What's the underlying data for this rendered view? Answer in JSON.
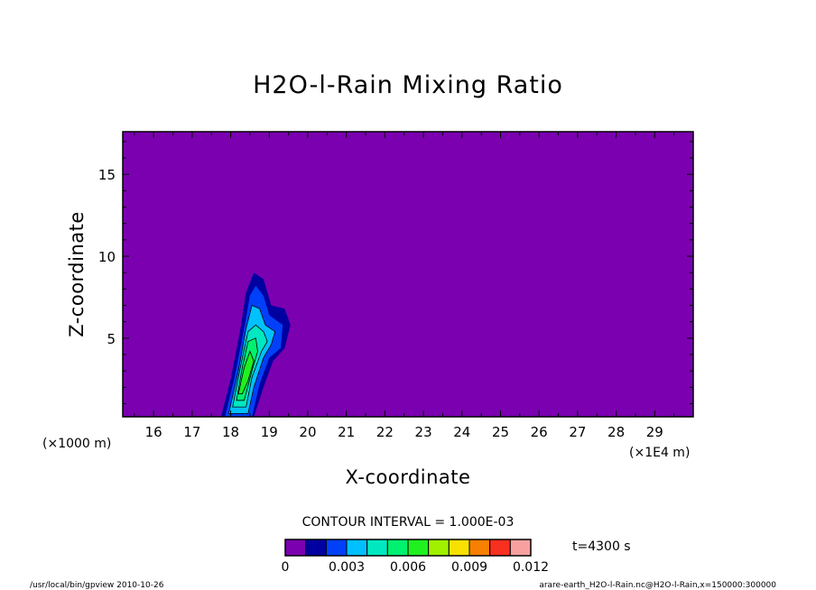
{
  "chart_data": {
    "type": "filled-contour",
    "title": "H2O-l-Rain Mixing Ratio",
    "xlabel": "X-coordinate",
    "ylabel": "Z-coordinate",
    "x_unit_left": "(×1000 m)",
    "x_unit_right": "(×1E4 m)",
    "xlim": [
      15.2,
      30.0
    ],
    "ylim": [
      0.2,
      17.6
    ],
    "x_ticks": [
      16,
      17,
      18,
      19,
      20,
      21,
      22,
      23,
      24,
      25,
      26,
      27,
      28,
      29
    ],
    "x_tick_labels": [
      "16",
      "17",
      "18",
      "19",
      "20",
      "21",
      "22",
      "23",
      "24",
      "25",
      "26",
      "27",
      "28",
      "29"
    ],
    "y_ticks": [
      5,
      10,
      15
    ],
    "y_tick_labels": [
      "5",
      "10",
      "15"
    ],
    "contour_interval_text": "CONTOUR INTERVAL = 1.000E-03",
    "time_label": "t=4300 s",
    "colorbar": {
      "levels": [
        0,
        0.001,
        0.002,
        0.003,
        0.004,
        0.005,
        0.006,
        0.007,
        0.008,
        0.009,
        0.01,
        0.011,
        0.012
      ],
      "colors": [
        "#7b00b0",
        "#0000a0",
        "#0040f8",
        "#00c0ff",
        "#00e8c0",
        "#00f070",
        "#20f020",
        "#a0f000",
        "#f8e000",
        "#f88000",
        "#f83020",
        "#f8a0a0"
      ],
      "tick_labels": [
        "0",
        "0.003",
        "0.006",
        "0.009",
        "0.012"
      ]
    },
    "background_value": 0,
    "plume": {
      "description_values": "rain-water mixing ratio filled contours near x≈18–19.5 (×1000 m), z≈0–9",
      "contours": [
        {
          "level": 0.001,
          "points": [
            [
              17.75,
              0.2
            ],
            [
              18.0,
              2.5
            ],
            [
              18.25,
              5.5
            ],
            [
              18.4,
              7.8
            ],
            [
              18.6,
              9.0
            ],
            [
              18.85,
              8.6
            ],
            [
              19.05,
              7.0
            ],
            [
              19.4,
              6.8
            ],
            [
              19.55,
              5.8
            ],
            [
              19.4,
              4.4
            ],
            [
              19.1,
              3.6
            ],
            [
              18.85,
              2.0
            ],
            [
              18.6,
              0.2
            ]
          ]
        },
        {
          "level": 0.002,
          "points": [
            [
              17.85,
              0.2
            ],
            [
              18.1,
              2.6
            ],
            [
              18.35,
              5.6
            ],
            [
              18.5,
              7.6
            ],
            [
              18.65,
              8.2
            ],
            [
              18.85,
              7.6
            ],
            [
              19.0,
              6.4
            ],
            [
              19.35,
              5.8
            ],
            [
              19.3,
              4.4
            ],
            [
              19.0,
              3.8
            ],
            [
              18.75,
              2.2
            ],
            [
              18.55,
              0.2
            ]
          ]
        },
        {
          "level": 0.003,
          "points": [
            [
              17.95,
              0.4
            ],
            [
              18.2,
              3.0
            ],
            [
              18.4,
              5.6
            ],
            [
              18.55,
              7.0
            ],
            [
              18.75,
              6.8
            ],
            [
              18.9,
              5.8
            ],
            [
              19.15,
              5.4
            ],
            [
              19.05,
              4.6
            ],
            [
              18.85,
              3.8
            ],
            [
              18.6,
              2.0
            ],
            [
              18.45,
              0.4
            ]
          ]
        },
        {
          "level": 0.004,
          "points": [
            [
              18.05,
              0.8
            ],
            [
              18.25,
              3.2
            ],
            [
              18.45,
              5.4
            ],
            [
              18.65,
              5.8
            ],
            [
              18.85,
              5.4
            ],
            [
              18.95,
              4.8
            ],
            [
              18.8,
              4.2
            ],
            [
              18.55,
              2.6
            ],
            [
              18.4,
              0.8
            ]
          ]
        },
        {
          "level": 0.005,
          "points": [
            [
              18.15,
              1.2
            ],
            [
              18.3,
              3.2
            ],
            [
              18.45,
              4.8
            ],
            [
              18.65,
              5.0
            ],
            [
              18.7,
              4.2
            ],
            [
              18.55,
              3.0
            ],
            [
              18.35,
              1.2
            ]
          ]
        },
        {
          "level": 0.006,
          "points": [
            [
              18.2,
              1.6
            ],
            [
              18.35,
              3.2
            ],
            [
              18.5,
              4.2
            ],
            [
              18.6,
              3.6
            ],
            [
              18.45,
              2.4
            ],
            [
              18.3,
              1.6
            ]
          ]
        }
      ]
    }
  },
  "footer": {
    "left": "/usr/local/bin/gpview  2010-10-26",
    "right": "arare-earth_H2O-l-Rain.nc@H2O-l-Rain,x=150000:300000"
  }
}
